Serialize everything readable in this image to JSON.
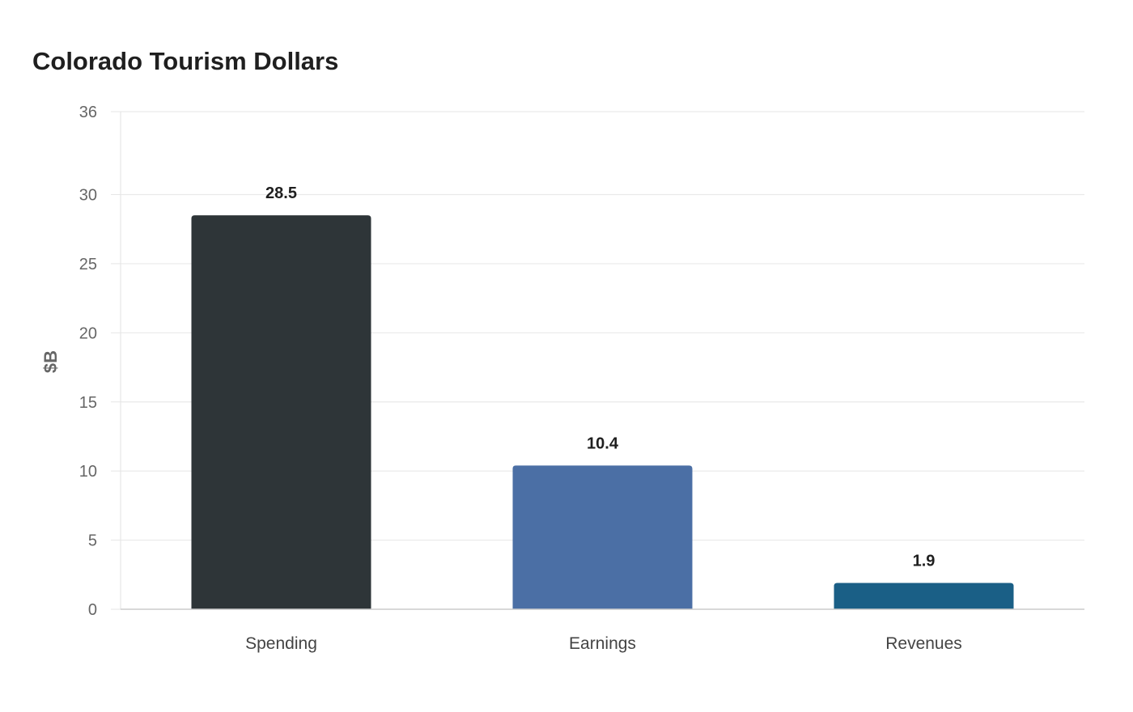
{
  "chart_data": {
    "type": "bar",
    "title": "Colorado Tourism Dollars",
    "xlabel": "",
    "ylabel": "$B",
    "categories": [
      "Spending",
      "Earnings",
      "Revenues"
    ],
    "values": [
      28.5,
      10.4,
      1.9
    ],
    "data_labels": [
      "28.5",
      "10.4",
      "1.9"
    ],
    "ylim": [
      0,
      36
    ],
    "yticks": [
      0,
      5,
      10,
      15,
      20,
      25,
      30,
      36
    ],
    "grid": true,
    "legend": "none",
    "colors": [
      "#2e3538",
      "#4b6fa5",
      "#1a5f86"
    ]
  }
}
